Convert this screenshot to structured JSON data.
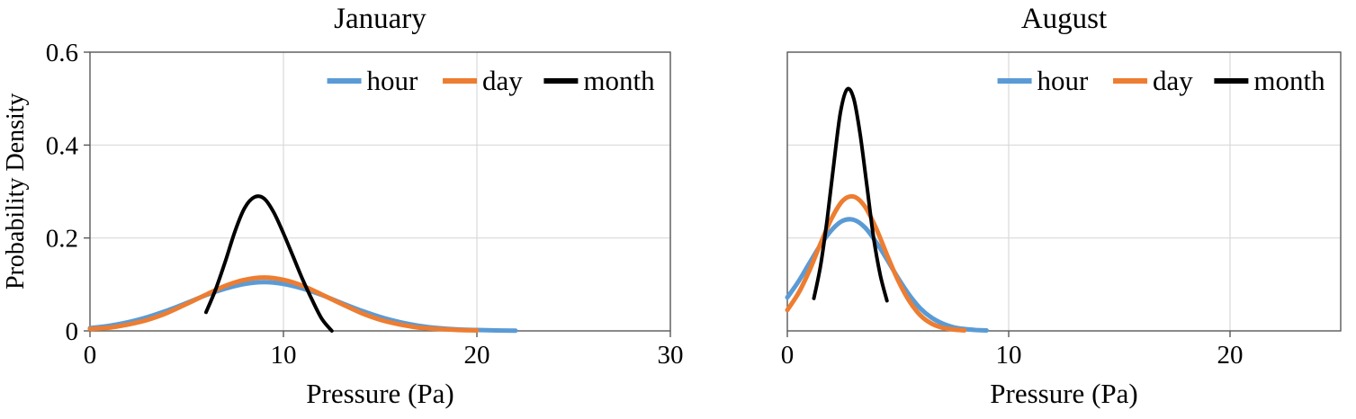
{
  "colors": {
    "hour": "#5B9BD5",
    "day": "#ED7D31",
    "month": "#000000",
    "grid": "#D9D9D9",
    "axis": "#595959",
    "text": "#000000",
    "background": "#FFFFFF"
  },
  "chart_data": [
    {
      "type": "line",
      "title": "January",
      "xlabel": "Pressure (Pa)",
      "ylabel": "Probability Density",
      "xlim": [
        0,
        30
      ],
      "ylim": [
        0,
        0.6
      ],
      "xticks": [
        0,
        10,
        20,
        30
      ],
      "xtick_labels": [
        "0",
        "10",
        "20",
        "30"
      ],
      "yticks": [
        0,
        0.2,
        0.4,
        0.6
      ],
      "ytick_labels": [
        "0",
        "0.2",
        "0.4",
        "0.6"
      ],
      "grid": true,
      "legend_position": "top-right-inside",
      "legend": [
        "hour",
        "day",
        "month"
      ],
      "series": [
        {
          "name": "hour",
          "color": "#5B9BD5",
          "x": [
            0,
            1,
            2,
            3,
            4,
            5,
            6,
            7,
            8,
            9,
            10,
            11,
            12,
            13,
            14,
            15,
            16,
            17,
            18,
            19,
            20,
            21,
            22
          ],
          "y": [
            0.006,
            0.011,
            0.019,
            0.03,
            0.044,
            0.06,
            0.077,
            0.091,
            0.101,
            0.105,
            0.101,
            0.091,
            0.077,
            0.06,
            0.044,
            0.03,
            0.019,
            0.011,
            0.006,
            0.003,
            0.002,
            0.001,
            0.0005
          ]
        },
        {
          "name": "day",
          "color": "#ED7D31",
          "x": [
            0,
            1,
            2,
            3,
            4,
            5,
            6,
            7,
            8,
            9,
            10,
            11,
            12,
            13,
            14,
            15,
            16,
            17,
            18,
            19,
            20
          ],
          "y": [
            0.004,
            0.007,
            0.014,
            0.024,
            0.039,
            0.058,
            0.078,
            0.097,
            0.11,
            0.115,
            0.11,
            0.097,
            0.078,
            0.058,
            0.039,
            0.024,
            0.014,
            0.007,
            0.004,
            0.002,
            0.001
          ]
        },
        {
          "name": "month",
          "color": "#000000",
          "x": [
            6,
            6.5,
            7,
            7.5,
            8,
            8.5,
            9,
            9.5,
            10,
            10.5,
            11,
            11.5,
            12,
            12.5
          ],
          "y": [
            0.04,
            0.09,
            0.15,
            0.215,
            0.265,
            0.288,
            0.285,
            0.255,
            0.21,
            0.16,
            0.11,
            0.065,
            0.025,
            0.0
          ]
        }
      ]
    },
    {
      "type": "line",
      "title": "August",
      "xlabel": "Pressure (Pa)",
      "ylabel": "",
      "xlim": [
        0,
        25
      ],
      "ylim": [
        0,
        0.6
      ],
      "xticks": [
        0,
        10,
        20
      ],
      "xtick_labels": [
        "0",
        "10",
        "20"
      ],
      "yticks": [
        0,
        0.2,
        0.4,
        0.6
      ],
      "ytick_labels": [],
      "grid": true,
      "legend_position": "top-right-inside",
      "legend": [
        "hour",
        "day",
        "month"
      ],
      "series": [
        {
          "name": "hour",
          "color": "#5B9BD5",
          "x": [
            0,
            0.5,
            1,
            1.5,
            2,
            2.5,
            3,
            3.5,
            4,
            4.5,
            5,
            5.5,
            6,
            6.5,
            7,
            7.5,
            8,
            8.5,
            9
          ],
          "y": [
            0.072,
            0.106,
            0.146,
            0.185,
            0.217,
            0.237,
            0.239,
            0.223,
            0.192,
            0.154,
            0.114,
            0.078,
            0.049,
            0.029,
            0.016,
            0.008,
            0.004,
            0.002,
            0.001
          ]
        },
        {
          "name": "day",
          "color": "#ED7D31",
          "x": [
            0,
            0.5,
            1,
            1.5,
            2,
            2.5,
            3,
            3.5,
            4,
            4.5,
            5,
            5.5,
            6,
            6.5,
            7,
            7.5,
            8
          ],
          "y": [
            0.045,
            0.081,
            0.13,
            0.188,
            0.242,
            0.28,
            0.289,
            0.268,
            0.222,
            0.164,
            0.109,
            0.065,
            0.034,
            0.016,
            0.007,
            0.003,
            0.001
          ]
        },
        {
          "name": "month",
          "color": "#000000",
          "x": [
            1.2,
            1.5,
            1.8,
            2.1,
            2.4,
            2.7,
            3.0,
            3.3,
            3.6,
            3.9,
            4.2,
            4.5
          ],
          "y": [
            0.07,
            0.14,
            0.24,
            0.36,
            0.47,
            0.52,
            0.5,
            0.42,
            0.31,
            0.2,
            0.12,
            0.065
          ]
        }
      ]
    }
  ]
}
